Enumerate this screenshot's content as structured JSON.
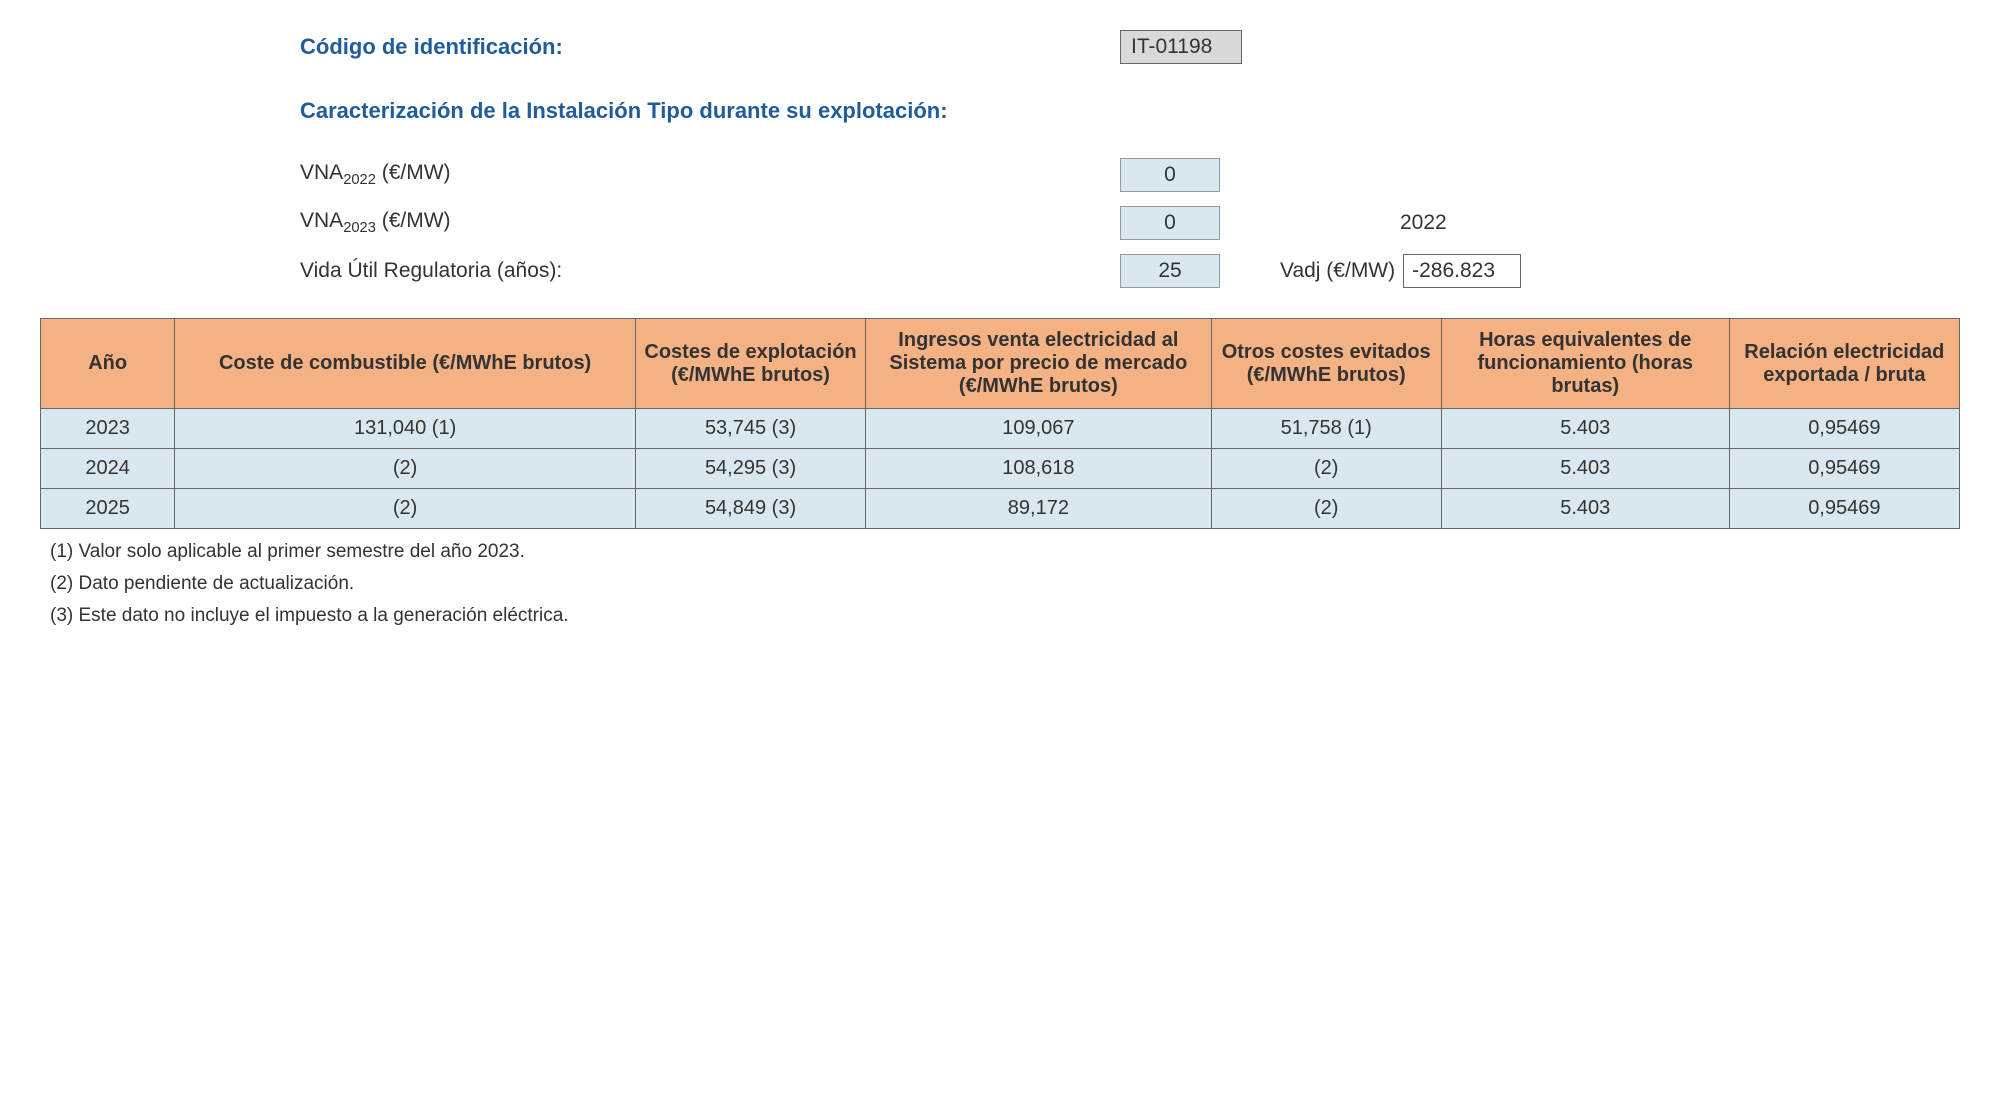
{
  "header": {
    "id_label": "Código de identificación:",
    "id_value": "IT-01198",
    "section_title": "Caracterización de la Instalación Tipo durante su explotación:",
    "vna2022_label_prefix": "VNA",
    "vna2022_sub": "2022",
    "vna2022_unit": " (€/MW)",
    "vna2022_value": "0",
    "vna2023_label_prefix": "VNA",
    "vna2023_sub": "2023",
    "vna2023_unit": " (€/MW)",
    "vna2023_value": "0",
    "side_year": "2022",
    "vida_label": "Vida Útil Regulatoria (años):",
    "vida_value": "25",
    "vadj_label": "Vadj (€/MW)",
    "vadj_value": "-286.823"
  },
  "table": {
    "columns": [
      "Año",
      "Coste de combustible (€/MWhE brutos)",
      "Costes de explotación (€/MWhE brutos)",
      "Ingresos venta electricidad al Sistema por precio de mercado (€/MWhE brutos)",
      "Otros costes evitados (€/MWhE brutos)",
      "Horas equivalentes de funcionamiento (horas brutas)",
      "Relación electricidad exportada / bruta"
    ],
    "rows": [
      [
        "2023",
        "131,040 (1)",
        "53,745 (3)",
        "109,067",
        "51,758 (1)",
        "5.403",
        "0,95469"
      ],
      [
        "2024",
        "(2)",
        "54,295 (3)",
        "108,618",
        "(2)",
        "5.403",
        "0,95469"
      ],
      [
        "2025",
        "(2)",
        "54,849 (3)",
        "89,172",
        "(2)",
        "5.403",
        "0,95469"
      ]
    ],
    "col_widths": [
      "7%",
      "24%",
      "12%",
      "18%",
      "12%",
      "15%",
      "12%"
    ]
  },
  "footnotes": [
    "(1) Valor solo aplicable al primer semestre del año 2023.",
    "(2) Dato pendiente de actualización.",
    "(3) Este dato no incluye el impuesto a la generación eléctrica."
  ],
  "colors": {
    "header_blue": "#1f5c99",
    "table_header_bg": "#f4b183",
    "table_cell_bg": "#d9e8ef",
    "box_gray_bg": "#d9d9d9",
    "border": "#666"
  }
}
